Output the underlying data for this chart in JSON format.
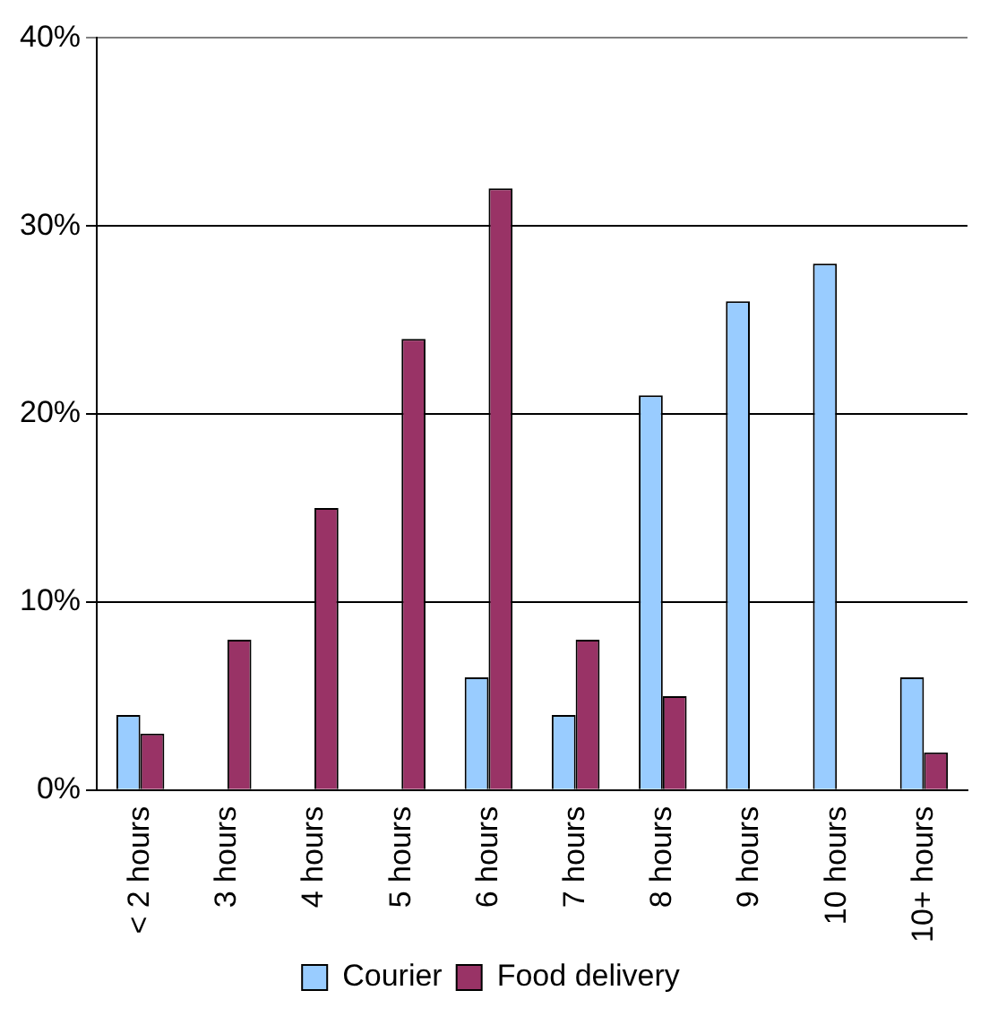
{
  "chart_data": {
    "type": "bar",
    "categories": [
      "< 2 hours",
      "3 hours",
      "4 hours",
      "5 hours",
      "6 hours",
      "7 hours",
      "8 hours",
      "9 hours",
      "10 hours",
      "10+ hours"
    ],
    "series": [
      {
        "name": "Courier",
        "color": "#99ccff",
        "values": [
          4,
          0,
          0,
          0,
          6,
          4,
          21,
          26,
          28,
          6
        ]
      },
      {
        "name": "Food delivery",
        "color": "#993366",
        "values": [
          3,
          8,
          15,
          24,
          32,
          8,
          5,
          0,
          0,
          2
        ]
      }
    ],
    "ylim": [
      0,
      40
    ],
    "yticks": [
      {
        "value": 0,
        "label": "0%"
      },
      {
        "value": 10,
        "label": "10%"
      },
      {
        "value": 20,
        "label": "20%"
      },
      {
        "value": 30,
        "label": "30%"
      },
      {
        "value": 40,
        "label": "40%"
      }
    ],
    "grid": "y",
    "legend": "bottom"
  }
}
